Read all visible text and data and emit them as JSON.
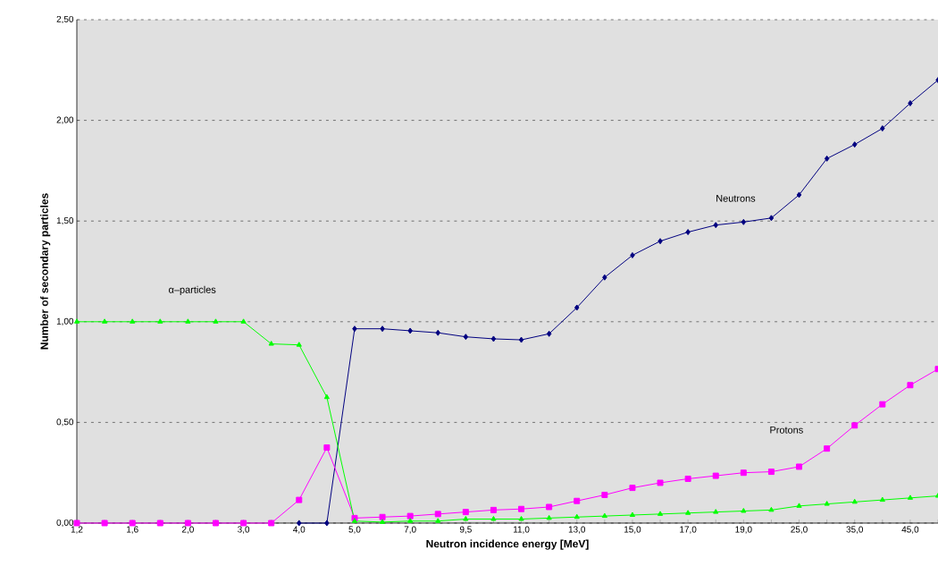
{
  "chart_data": {
    "type": "line",
    "xlabel": "Neutron incidence energy [MeV]",
    "ylabel": "Number of secondary particles",
    "categories": [
      "1,2",
      null,
      "1,6",
      null,
      "2,0",
      null,
      "3,0",
      null,
      "4,0",
      null,
      "5,0",
      null,
      "7,0",
      null,
      "9,5",
      null,
      "11,0",
      null,
      "13,0",
      null,
      "15,0",
      null,
      "17,0",
      null,
      "19,0",
      null,
      "25,0",
      null,
      "35,0",
      null,
      "45,0",
      null
    ],
    "series": [
      {
        "name": "Neutrons",
        "color": "#000080",
        "marker": "diamond",
        "values": [
          null,
          null,
          null,
          null,
          null,
          null,
          null,
          null,
          0,
          0,
          0.965,
          0.965,
          0.955,
          0.945,
          0.925,
          0.915,
          0.91,
          0.94,
          1.07,
          1.22,
          1.33,
          1.4,
          1.445,
          1.48,
          1.495,
          1.515,
          1.63,
          1.81,
          1.88,
          1.96,
          2.085,
          2.2
        ]
      },
      {
        "name": "Protons",
        "color": "#ff00ff",
        "marker": "square",
        "values": [
          0,
          0,
          0,
          0,
          0,
          0,
          0,
          0,
          0.115,
          0.375,
          0.025,
          0.03,
          0.035,
          0.045,
          0.055,
          0.065,
          0.07,
          0.08,
          0.11,
          0.14,
          0.175,
          0.2,
          0.22,
          0.235,
          0.25,
          0.255,
          0.28,
          0.37,
          0.485,
          0.59,
          0.685,
          0.765
        ]
      },
      {
        "name": "α–particles",
        "color": "#00ff00",
        "marker": "triangle",
        "values": [
          1.0,
          1.0,
          1.0,
          1.0,
          1.0,
          1.0,
          1.0,
          0.89,
          0.885,
          0.625,
          0.01,
          0.005,
          0.01,
          0.01,
          0.02,
          0.02,
          0.02,
          0.025,
          0.03,
          0.035,
          0.04,
          0.045,
          0.05,
          0.055,
          0.06,
          0.065,
          0.085,
          0.095,
          0.105,
          0.115,
          0.125,
          0.135
        ]
      }
    ],
    "ylim": [
      0,
      2.5
    ],
    "yticks": [
      {
        "value": 0,
        "label": "0,00"
      },
      {
        "value": 0.5,
        "label": "0,50"
      },
      {
        "value": 1.0,
        "label": "1,00"
      },
      {
        "value": 1.5,
        "label": "1,50"
      },
      {
        "value": 2.0,
        "label": "2,00"
      },
      {
        "value": 2.5,
        "label": "2,50"
      }
    ],
    "grid": "y",
    "line_style": "solid"
  }
}
